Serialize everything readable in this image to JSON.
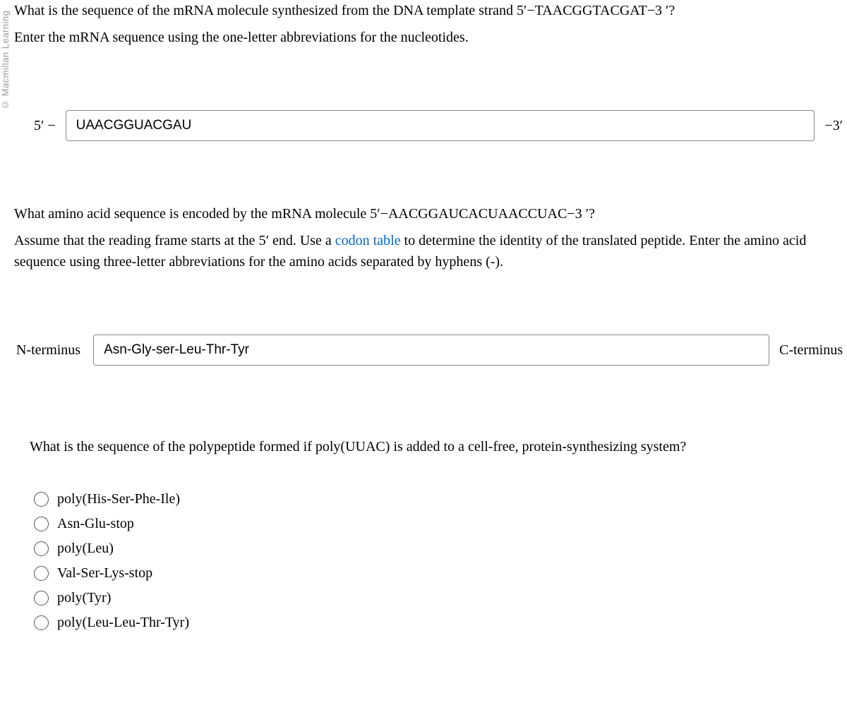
{
  "watermark": "© Macmillan Learning",
  "q1": {
    "text_before": "What is the sequence of the mRNA molecule synthesized from the DNA template strand ",
    "sequence": "5′−TAACGGTACGAT−3 ′",
    "text_after": "?",
    "instruction": "Enter the mRNA sequence using the one-letter abbreviations for the nucleotides.",
    "prefix": "5′ −",
    "value": "UAACGGUACGAU",
    "suffix": "−3′"
  },
  "q2": {
    "text_before": "What amino acid sequence is encoded by the mRNA molecule ",
    "sequence": "5′−AACGGAUCACUAACCUAC−3 ′",
    "text_after": "?",
    "instruction_before": "Assume that the reading frame starts at the ",
    "five_prime": "5′",
    "instruction_mid": " end. Use a ",
    "link_text": "codon table",
    "instruction_after": " to determine the identity of the translated peptide. Enter the amino acid sequence using three-letter abbreviations for the amino acids separated by hyphens (-).",
    "prefix": "N-terminus",
    "value": "Asn-Gly-ser-Leu-Thr-Tyr",
    "suffix": "C-terminus"
  },
  "q3": {
    "text": "What is the sequence of the polypeptide formed if poly(UUAC) is added to a cell-free, protein-synthesizing system?",
    "options": [
      "poly(His-Ser-Phe-Ile)",
      "Asn-Glu-stop",
      "poly(Leu)",
      "Val-Ser-Lys-stop",
      "poly(Tyr)",
      "poly(Leu-Leu-Thr-Tyr)"
    ]
  }
}
